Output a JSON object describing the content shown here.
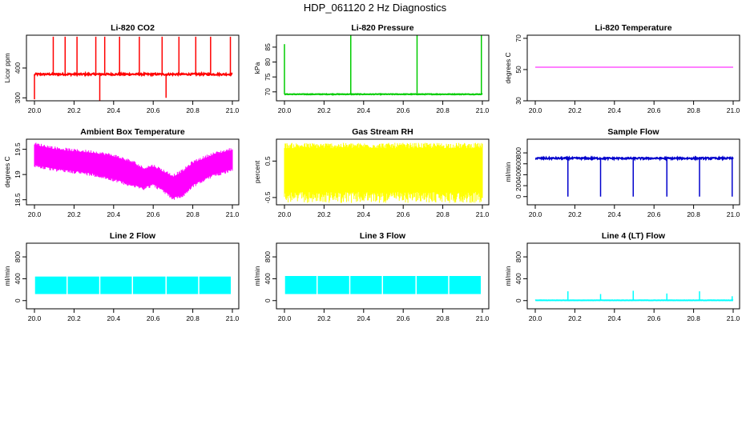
{
  "page": {
    "title": "HDP_061120  2 Hz Diagnostics"
  },
  "chart_data": [
    {
      "type": "line",
      "title": "Li-820 CO2",
      "ylabel": "Licor ppm",
      "color": "#ff0000",
      "xlim": [
        20.0,
        21.0
      ],
      "xticks": [
        "20.0",
        "20.2",
        "20.4",
        "20.6",
        "20.8",
        "21.0"
      ],
      "ylim": [
        290,
        510
      ],
      "yticks": [
        300,
        400
      ],
      "style": "spiky",
      "series": [
        {
          "name": "CO2",
          "baseline": 379,
          "noise": 3,
          "spikes": [
            {
              "x": 20.0,
              "y": 295
            },
            {
              "x": 20.095,
              "y": 505
            },
            {
              "x": 20.155,
              "y": 505
            },
            {
              "x": 20.215,
              "y": 505
            },
            {
              "x": 20.31,
              "y": 505
            },
            {
              "x": 20.33,
              "y": 290
            },
            {
              "x": 20.355,
              "y": 505
            },
            {
              "x": 20.43,
              "y": 505
            },
            {
              "x": 20.53,
              "y": 505
            },
            {
              "x": 20.645,
              "y": 505
            },
            {
              "x": 20.665,
              "y": 300
            },
            {
              "x": 20.73,
              "y": 505
            },
            {
              "x": 20.815,
              "y": 505
            },
            {
              "x": 20.89,
              "y": 505
            },
            {
              "x": 20.99,
              "y": 505
            }
          ]
        }
      ]
    },
    {
      "type": "line",
      "title": "Li-820 Pressure",
      "ylabel": "kPa",
      "color": "#00cc00",
      "xlim": [
        20.0,
        21.0
      ],
      "xticks": [
        "20.0",
        "20.2",
        "20.4",
        "20.6",
        "20.8",
        "21.0"
      ],
      "ylim": [
        67,
        89
      ],
      "yticks": [
        70,
        75,
        80,
        85
      ],
      "style": "spiky",
      "series": [
        {
          "name": "Pressure",
          "baseline": 69.2,
          "noise": 0.1,
          "spikes": [
            {
              "x": 20.0,
              "y": 86
            },
            {
              "x": 20.335,
              "y": 89
            },
            {
              "x": 20.67,
              "y": 89
            },
            {
              "x": 20.995,
              "y": 89
            }
          ]
        }
      ]
    },
    {
      "type": "line",
      "title": "Li-820 Temperature",
      "ylabel": "degrees C",
      "color": "#ff00ff",
      "xlim": [
        20.0,
        21.0
      ],
      "xticks": [
        "20.0",
        "20.2",
        "20.4",
        "20.6",
        "20.8",
        "21.0"
      ],
      "ylim": [
        30,
        72
      ],
      "yticks": [
        30,
        50,
        70
      ],
      "style": "flat",
      "series": [
        {
          "name": "Temperature",
          "baseline": 51.5,
          "noise": 0
        }
      ]
    },
    {
      "type": "area",
      "title": "Ambient Box Temperature",
      "ylabel": "degrees C",
      "color": "#ff00ff",
      "xlim": [
        20.0,
        21.0
      ],
      "xticks": [
        "20.0",
        "20.2",
        "20.4",
        "20.6",
        "20.8",
        "21.0"
      ],
      "ylim": [
        18.4,
        19.7
      ],
      "yticks": [
        18.5,
        19.0,
        19.5
      ],
      "style": "band",
      "series": [
        {
          "name": "Ambient",
          "x": [
            20.0,
            20.1,
            20.2,
            20.3,
            20.4,
            20.5,
            20.55,
            20.6,
            20.65,
            20.7,
            20.75,
            20.8,
            20.9,
            21.0
          ],
          "lower": [
            19.2,
            19.12,
            19.08,
            19.02,
            18.92,
            18.8,
            18.75,
            18.82,
            18.7,
            18.55,
            18.6,
            18.8,
            19.0,
            19.12
          ],
          "upper": [
            19.58,
            19.5,
            19.45,
            19.42,
            19.35,
            19.22,
            19.1,
            19.15,
            19.05,
            18.95,
            19.05,
            19.22,
            19.38,
            19.48
          ]
        }
      ]
    },
    {
      "type": "area",
      "title": "Gas Stream RH",
      "ylabel": "percent",
      "color": "#ffff00",
      "xlim": [
        20.0,
        21.0
      ],
      "xticks": [
        "20.0",
        "20.2",
        "20.4",
        "20.6",
        "20.8",
        "21.0"
      ],
      "ylim": [
        -0.7,
        1.1
      ],
      "yticks": [
        -0.5,
        0.5
      ],
      "style": "noise",
      "series": [
        {
          "name": "RH",
          "lower": -0.65,
          "upper": 1.0,
          "core_lower": -0.35,
          "core_upper": 0.85
        }
      ]
    },
    {
      "type": "line",
      "title": "Sample Flow",
      "ylabel": "ml/min",
      "color": "#0000cc",
      "xlim": [
        20.0,
        21.0
      ],
      "xticks": [
        "20.0",
        "20.2",
        "20.4",
        "20.6",
        "20.8",
        "21.0"
      ],
      "ylim": [
        -150,
        1050
      ],
      "yticks": [
        0,
        200,
        400,
        600,
        800
      ],
      "style": "spiky",
      "series": [
        {
          "name": "Sample",
          "baseline": 700,
          "noise": 15,
          "spikes": [
            {
              "x": 20.165,
              "y": 0
            },
            {
              "x": 20.33,
              "y": 0
            },
            {
              "x": 20.495,
              "y": 0
            },
            {
              "x": 20.665,
              "y": 0
            },
            {
              "x": 20.83,
              "y": 0
            },
            {
              "x": 20.995,
              "y": 0
            }
          ]
        }
      ]
    },
    {
      "type": "area",
      "title": "Line 2 Flow",
      "ylabel": "ml/min",
      "color": "#00ffff",
      "xlim": [
        20.0,
        21.0
      ],
      "xticks": [
        "20.0",
        "20.2",
        "20.4",
        "20.6",
        "20.8",
        "21.0"
      ],
      "ylim": [
        -150,
        1050
      ],
      "yticks": [
        0,
        400,
        800
      ],
      "style": "segments",
      "series": [
        {
          "name": "Line 2",
          "lower": 120,
          "upper": 440,
          "gaps": [
            20.165,
            20.33,
            20.495,
            20.665,
            20.83,
            20.995
          ]
        }
      ]
    },
    {
      "type": "area",
      "title": "Line 3 Flow",
      "ylabel": "ml/min",
      "color": "#00ffff",
      "xlim": [
        20.0,
        21.0
      ],
      "xticks": [
        "20.0",
        "20.2",
        "20.4",
        "20.6",
        "20.8",
        "21.0"
      ],
      "ylim": [
        -150,
        1050
      ],
      "yticks": [
        0,
        400,
        800
      ],
      "style": "segments",
      "series": [
        {
          "name": "Line 3",
          "lower": 120,
          "upper": 450,
          "gaps": [
            20.165,
            20.33,
            20.495,
            20.665,
            20.83,
            20.995
          ]
        }
      ]
    },
    {
      "type": "line",
      "title": "Line 4 (LT) Flow",
      "ylabel": "ml/min",
      "color": "#00ffff",
      "xlim": [
        20.0,
        21.0
      ],
      "xticks": [
        "20.0",
        "20.2",
        "20.4",
        "20.6",
        "20.8",
        "21.0"
      ],
      "ylim": [
        -150,
        1050
      ],
      "yticks": [
        0,
        400,
        800
      ],
      "style": "spiky",
      "series": [
        {
          "name": "Line 4",
          "baseline": 5,
          "noise": 2,
          "spikes": [
            {
              "x": 20.165,
              "y": 170
            },
            {
              "x": 20.33,
              "y": 120
            },
            {
              "x": 20.495,
              "y": 180
            },
            {
              "x": 20.665,
              "y": 130
            },
            {
              "x": 20.83,
              "y": 170
            },
            {
              "x": 20.995,
              "y": 80
            }
          ]
        }
      ]
    }
  ]
}
